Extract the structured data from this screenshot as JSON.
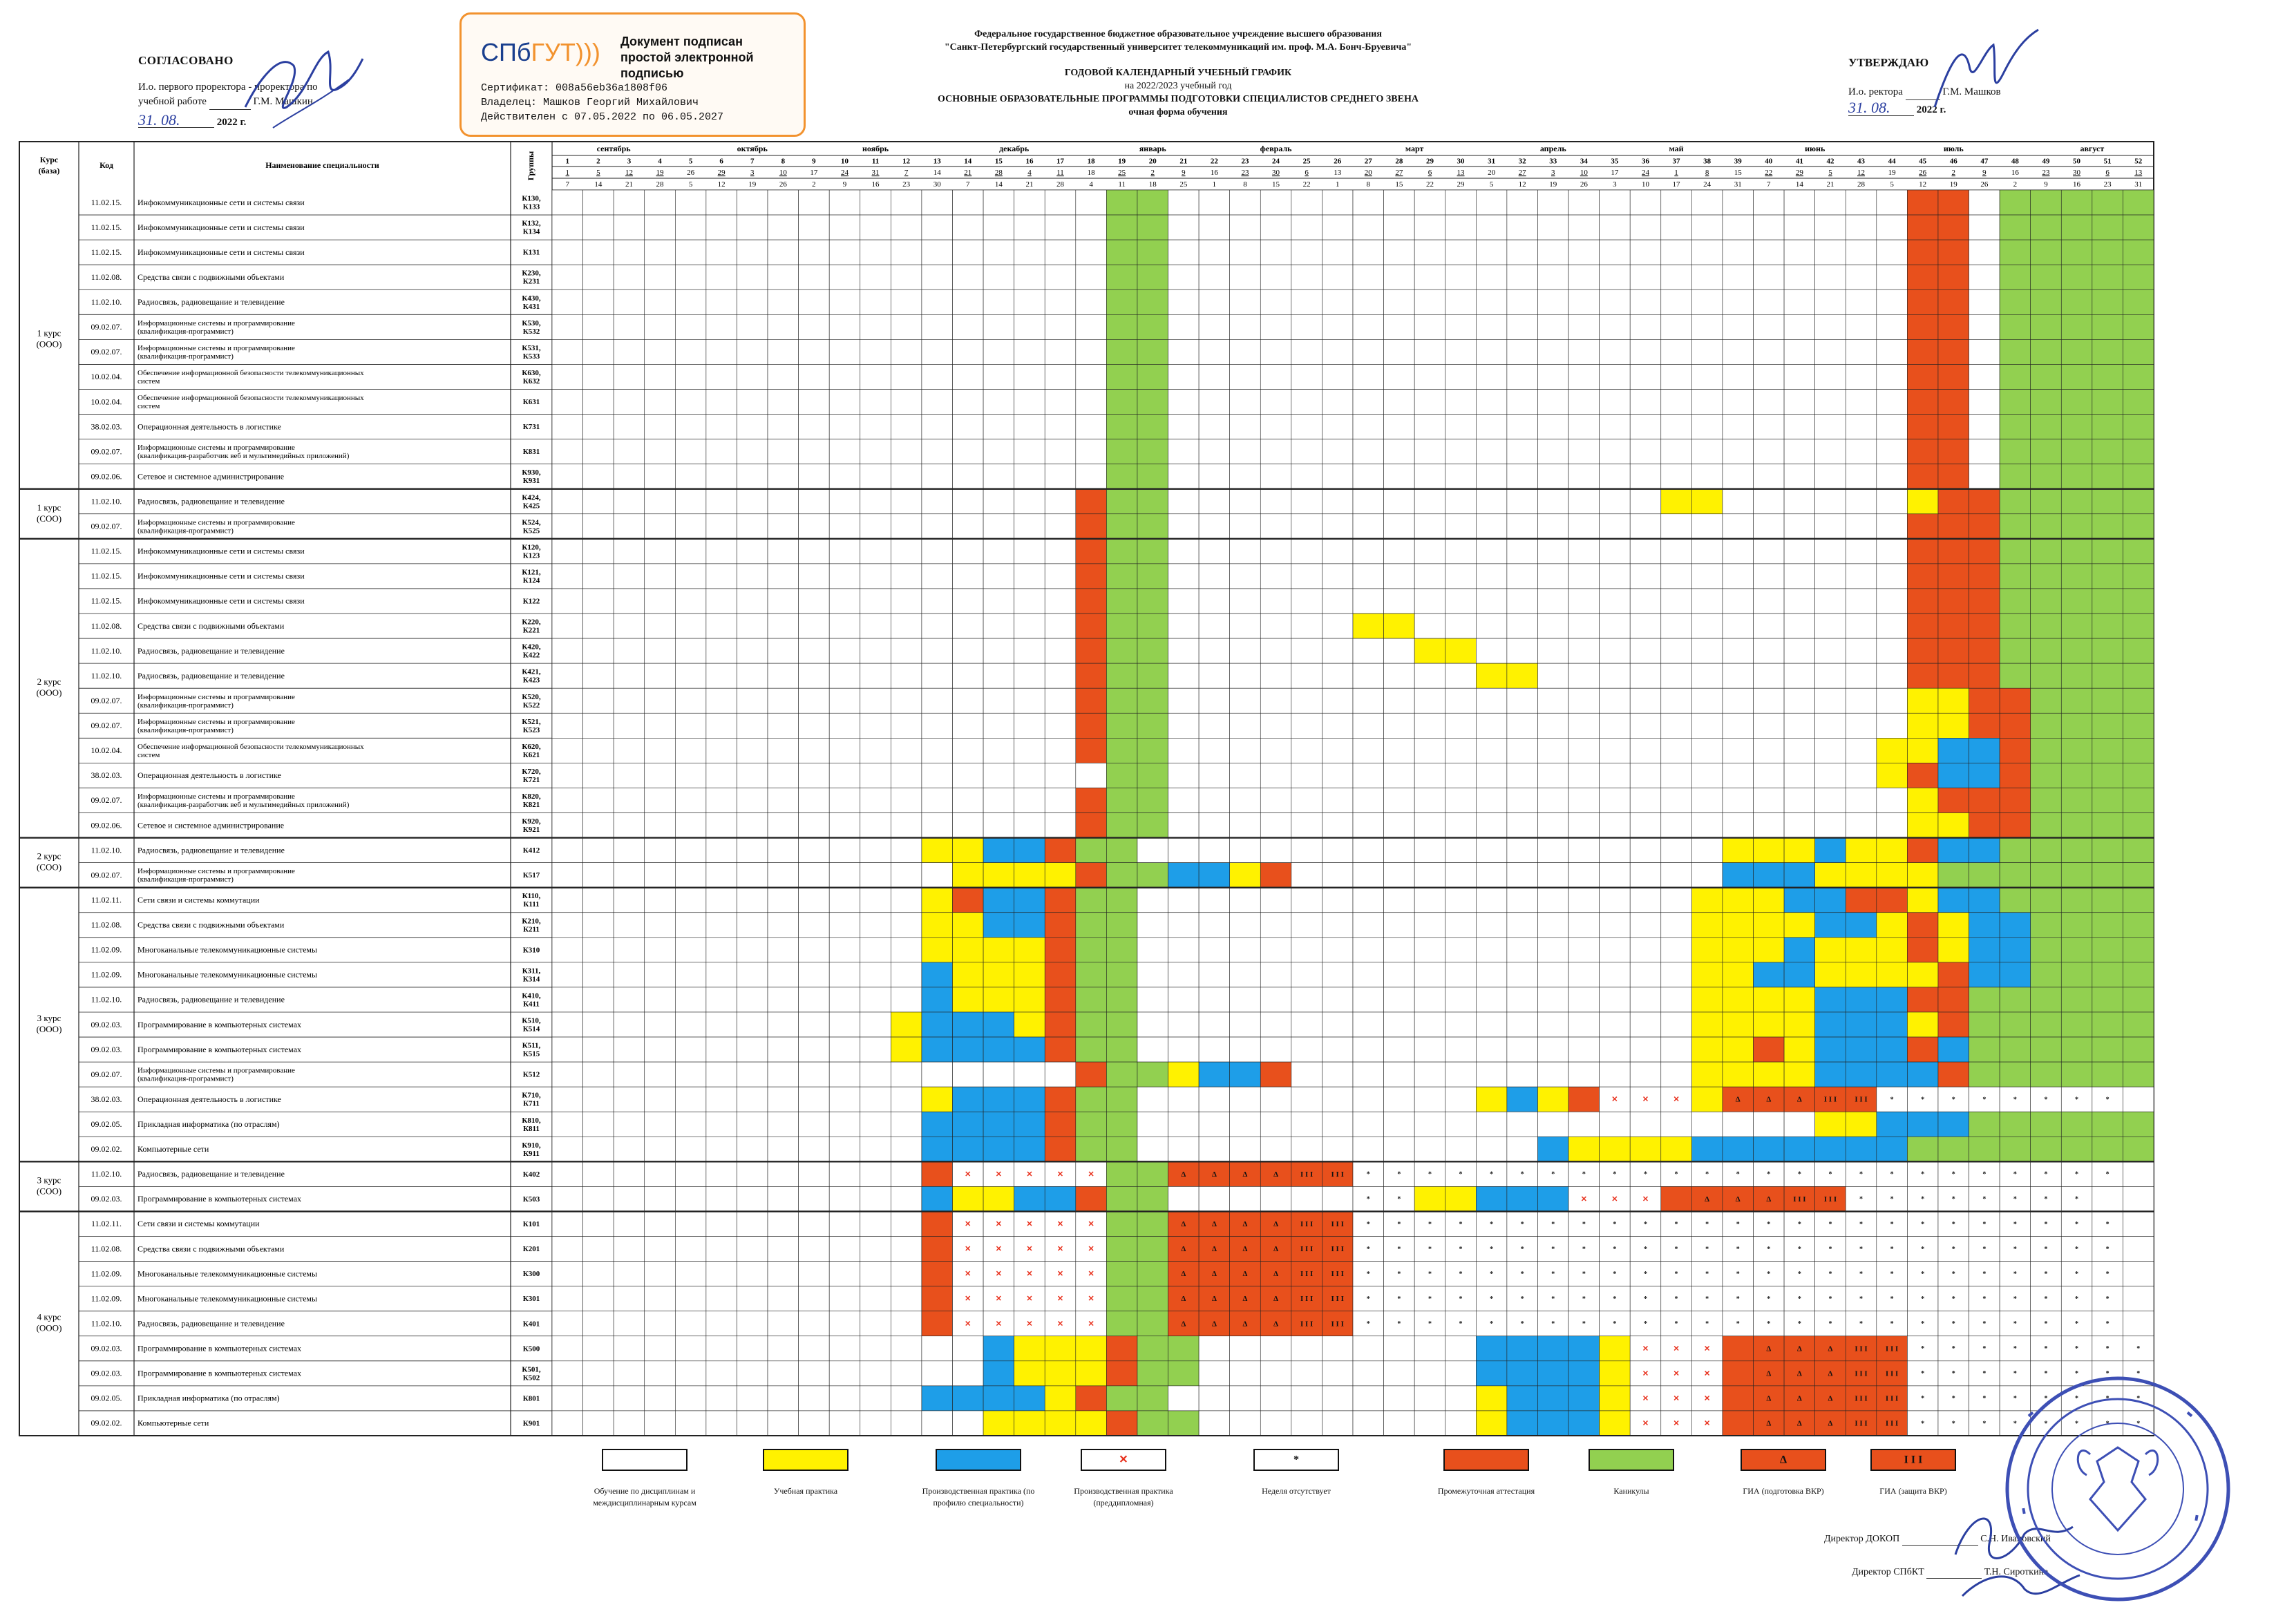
{
  "approve_left": {
    "title": "СОГЛАСОВАНО",
    "line1": "И.о. первого проректора - проректора по",
    "line2": "учебной работе",
    "name": "Г.М. Машкин",
    "date": "31. 08.",
    "year": "2022 г."
  },
  "stamp": {
    "logo_a": "СПб",
    "logo_b": "ГУТ)))",
    "title": "Документ подписан простой электронной подписью",
    "cert": "Сертификат:  008a56eb36a1808f06",
    "owner": "Владелец:  Машков Георгий Михайлович",
    "valid": "Действителен с   07.05.2022  по  06.05.2027"
  },
  "header": {
    "org1": "Федеральное государственное бюджетное образовательное учреждение высшего образования",
    "org2": "\"Санкт-Петербургский государственный университет телекоммуникаций им. проф. М.А. Бонч-Бруевича\"",
    "title": "ГОДОВОЙ КАЛЕНДАРНЫЙ УЧЕБНЫЙ ГРАФИК",
    "year": "на 2022/2023 учебный год",
    "programs": "ОСНОВНЫЕ ОБРАЗОВАТЕЛЬНЫЕ ПРОГРАММЫ ПОДГОТОВКИ СПЕЦИАЛИСТОВ СРЕДНЕГО ЗВЕНА",
    "form": "очная форма обучения"
  },
  "approve_right": {
    "title": "УТВЕРЖДАЮ",
    "line1": "И.о. ректора",
    "name": "Г.М. Машков",
    "date": "31. 08.",
    "year": "2022 г."
  },
  "table_headers": {
    "course": "Курс (база)",
    "code": "Код",
    "name": "Наименование специальности",
    "groups": "Группы"
  },
  "chart_data": {
    "type": "heatmap",
    "months": [
      {
        "name": "сентябрь",
        "start": 1,
        "end": 4
      },
      {
        "name": "октябрь",
        "start": 6,
        "end": 8
      },
      {
        "name": "ноябрь",
        "start": 10,
        "end": 12
      },
      {
        "name": "декабрь",
        "start": 14,
        "end": 17
      },
      {
        "name": "январь",
        "start": 19,
        "end": 21
      },
      {
        "name": "февраль",
        "start": 23,
        "end": 25
      },
      {
        "name": "март",
        "start": 27,
        "end": 30
      },
      {
        "name": "апрель",
        "start": 32,
        "end": 34
      },
      {
        "name": "май",
        "start": 36,
        "end": 38
      },
      {
        "name": "июнь",
        "start": 40,
        "end": 43
      },
      {
        "name": "июль",
        "start": 45,
        "end": 47
      },
      {
        "name": "август",
        "start": 49,
        "end": 52
      }
    ],
    "weeks": [
      "1",
      "2",
      "3",
      "4",
      "5",
      "6",
      "7",
      "8",
      "9",
      "10",
      "11",
      "12",
      "13",
      "14",
      "15",
      "16",
      "17",
      "18",
      "19",
      "20",
      "21",
      "22",
      "23",
      "24",
      "25",
      "26",
      "27",
      "28",
      "29",
      "30",
      "31",
      "32",
      "33",
      "34",
      "35",
      "36",
      "37",
      "38",
      "39",
      "40",
      "41",
      "42",
      "43",
      "44",
      "45",
      "46",
      "47",
      "48",
      "49",
      "50",
      "51",
      "52"
    ],
    "start_dates": [
      "1",
      "5",
      "12",
      "19",
      "26",
      "29",
      "3",
      "10",
      "17",
      "24",
      "31",
      "7",
      "14",
      "21",
      "28",
      "4",
      "11",
      "18",
      "25",
      "2",
      "9",
      "16",
      "23",
      "30",
      "6",
      "13",
      "20",
      "27",
      "6",
      "13",
      "20",
      "27",
      "3",
      "10",
      "17",
      "24",
      "1",
      "8",
      "15",
      "22",
      "29",
      "5",
      "12",
      "19",
      "26",
      "2",
      "9",
      "16",
      "23",
      "30",
      "6",
      "13"
    ],
    "end_dates": [
      "7",
      "14",
      "21",
      "28",
      "5",
      "12",
      "19",
      "26",
      "2",
      "9",
      "16",
      "23",
      "30",
      "7",
      "14",
      "21",
      "28",
      "4",
      "11",
      "18",
      "25",
      "1",
      "8",
      "15",
      "22",
      "1",
      "8",
      "15",
      "22",
      "29",
      "5",
      "12",
      "19",
      "26",
      "3",
      "10",
      "17",
      "24",
      "31",
      "7",
      "14",
      "21",
      "28",
      "5",
      "12",
      "19",
      "26",
      "2",
      "9",
      "16",
      "23",
      "31"
    ],
    "rows": [
      {
        "course": "1 курс (ООО)",
        "code": "11.02.15.",
        "name": "Инфокоммуникационные сети и системы связи",
        "group": "К130, К133",
        "w": "                  GG                        RR GGGGGGGG"
      },
      {
        "course": "",
        "code": "11.02.15.",
        "name": "Инфокоммуникационные сети и системы связи",
        "group": "К132, К134",
        "w": "                  GG                        RR GGGGGGGG"
      },
      {
        "course": "",
        "code": "11.02.15.",
        "name": "Инфокоммуникационные сети и системы связи",
        "group": "К131",
        "w": "                  GG                        RR GGGGGGGG"
      },
      {
        "course": "",
        "code": "11.02.08.",
        "name": "Средства связи с подвижными объектами",
        "group": "К230, К231",
        "w": "                  GG                        RR GGGGGGGG"
      },
      {
        "course": "",
        "code": "11.02.10.",
        "name": "Радиосвязь, радиовещание и телевидение",
        "group": "К430, К431",
        "w": "                  GG                        RR GGGGGGGG"
      },
      {
        "course": "",
        "code": "09.02.07.",
        "name": "Информационные системы и программирование (квалификация-программист)",
        "group": "К530, К532",
        "w": "                  GG                        RR GGGGGGGG"
      },
      {
        "course": "",
        "code": "09.02.07.",
        "name": "Информационные системы и программирование (квалификация-программист)",
        "group": "К531, К533",
        "w": "                  GG                        RR GGGGGGGG"
      },
      {
        "course": "",
        "code": "10.02.04.",
        "name": "Обеспечение информационной безопасности телекоммуникационных систем",
        "group": "К630, К632",
        "w": "                  GG                        RR GGGGGGGG"
      },
      {
        "course": "",
        "code": "10.02.04.",
        "name": "Обеспечение информационной безопасности телекоммуникационных систем",
        "group": "К631",
        "w": "                  GG                        RR GGGGGGGG"
      },
      {
        "course": "",
        "code": "38.02.03.",
        "name": "Операционная деятельность в логистике",
        "group": "К731",
        "w": "                  GG                        RR GGGGGGGG"
      },
      {
        "course": "",
        "code": "09.02.07.",
        "name": "Информационные системы и программирование (квалификация-разработчик веб и мультимедийных приложений)",
        "group": "К831",
        "w": "                  GG                        RR GGGGGGGG"
      },
      {
        "course": "",
        "code": "09.02.06.",
        "name": "Сетевое и системное администрирование",
        "group": "К930, К931",
        "w": "                  GG                        RR GGGGGGGG"
      },
      {
        "course": "1 курс (СОО)",
        "code": "11.02.10.",
        "name": "Радиосвязь, радиовещание и телевидение",
        "group": "К424, К425",
        "w": "                 RGG                YY      YRRGGGGGGGG"
      },
      {
        "course": "",
        "code": "09.02.07.",
        "name": "Информационные системы и программирование (квалификация-программист)",
        "group": "К524, К525",
        "w": "                 RGG                        RRRGGGGGGGG"
      },
      {
        "course": "2 курс (ООО)",
        "code": "11.02.15.",
        "name": "Инфокоммуникационные сети и системы связи",
        "group": "К120, К123",
        "w": "                 RGG                        RRRGGGGGGGG"
      },
      {
        "course": "",
        "code": "11.02.15.",
        "name": "Инфокоммуникационные сети и системы связи",
        "group": "К121, К124",
        "w": "                 RGG                        RRRGGGGGGGG"
      },
      {
        "course": "",
        "code": "11.02.15.",
        "name": "Инфокоммуникационные сети и системы связи",
        "group": "К122",
        "w": "                 RGG                        RRRGGGGGGGG"
      },
      {
        "course": "",
        "code": "11.02.08.",
        "name": "Средства связи с подвижными объектами",
        "group": "К220, К221",
        "w": "                 RGG      YY                RRRGGGGGGGG"
      },
      {
        "course": "",
        "code": "11.02.10.",
        "name": "Радиосвязь, радиовещание и телевидение",
        "group": "К420, К422",
        "w": "                 RGG        YY              RRRGGGGGGGG"
      },
      {
        "course": "",
        "code": "11.02.10.",
        "name": "Радиосвязь, радиовещание и телевидение",
        "group": "К421, К423",
        "w": "                 RGG          YY            RRRGGGGGGGG"
      },
      {
        "course": "",
        "code": "09.02.07.",
        "name": "Информационные системы и программирование (квалификация-программист)",
        "group": "К520, К522",
        "w": "                 RGG                        YYRRGGGGGGGG"
      },
      {
        "course": "",
        "code": "09.02.07.",
        "name": "Информационные системы и программирование (квалификация-программист)",
        "group": "К521, К523",
        "w": "                 RGG                        YYRRGGGGGGGG"
      },
      {
        "course": "",
        "code": "10.02.04.",
        "name": "Обеспечение информационной безопасности телекоммуникационных систем",
        "group": "К620, К621",
        "w": "                 RGG                       YYBBRGGGGGGGG"
      },
      {
        "course": "",
        "code": "38.02.03.",
        "name": "Операционная деятельность в логистике",
        "group": "К720, К721",
        "w": "                  GG                       YRBBRGGGGGGGG"
      },
      {
        "course": "",
        "code": "09.02.07.",
        "name": "Информационные системы и программирование (квалификация-разработчик веб и мультимедийных приложений)",
        "group": "К820, К821",
        "w": "                 RGG                        YRRRGGGGGGGG"
      },
      {
        "course": "",
        "code": "09.02.06.",
        "name": "Сетевое и системное администрирование",
        "group": "К920, К921",
        "w": "                 RGG                        YYRRGGGGGGGG"
      },
      {
        "course": "2 курс (СОО)",
        "code": "11.02.10.",
        "name": "Радиосвязь, радиовещание и телевидение",
        "group": "К412",
        "w": "            YYBBRGG                   YYYBYYRBBGGGGGG"
      },
      {
        "course": "",
        "code": "09.02.07.",
        "name": "Информационные системы и программирование (квалификация-программист)",
        "group": "К517",
        "w": "             YYYYRGGBBYR              BBBYYYYGGGGGGGG"
      },
      {
        "course": "3 курс (ООО)",
        "code": "11.02.11.",
        "name": "Сети связи и системы коммутации",
        "group": "К110, К111",
        "w": "            YRBBRGG                  YYYBBRRYBBGGGGGG"
      },
      {
        "course": "",
        "code": "11.02.08.",
        "name": "Средства связи с подвижными объектами",
        "group": "К210, К211",
        "w": "            YYBBRGG                  YYYYBBYRYBBGGGGG"
      },
      {
        "course": "",
        "code": "11.02.09.",
        "name": "Многоканальные телекоммуникационные системы",
        "group": "К310",
        "w": "            YYYYRGG                  YYYBYYYRYBBGGGGG"
      },
      {
        "course": "",
        "code": "11.02.09.",
        "name": "Многоканальные телекоммуникационные системы",
        "group": "К311, К314",
        "w": "            BYYYRGG                  YYBBYYYYRBBGGGGG"
      },
      {
        "course": "",
        "code": "11.02.10.",
        "name": "Радиосвязь, радиовещание и телевидение",
        "group": "К410, К411",
        "w": "            BYYYRGG                  YYYYBBBRRGGGGGGG"
      },
      {
        "course": "",
        "code": "09.02.03.",
        "name": "Программирование в компьютерных системах",
        "group": "К510, К514",
        "w": "           YBBBYRGG                  YYYYBBBYRGGGGGGG"
      },
      {
        "course": "",
        "code": "09.02.03.",
        "name": "Программирование в компьютерных системах",
        "group": "К511, К515",
        "w": "           YBBBBRGG                  YYRYBBBRBGGGGGGG"
      },
      {
        "course": "",
        "code": "09.02.07.",
        "name": "Информационные системы и программирование (квалификация-программист)",
        "group": "К512",
        "w": "                 RGGYBBR             YYYYBBBBRGGGGGGG"
      },
      {
        "course": "",
        "code": "38.02.03.",
        "name": "Операционная деятельность в логистике",
        "group": "К710, К711",
        "w": "            YBBBRGG           YBYRXXXYDDDTTSSSSSSSS"
      },
      {
        "course": "",
        "code": "09.02.05.",
        "name": "Прикладная информатика (по отраслям)",
        "group": "К810, К811",
        "w": "            BBBBRGG                      YYBBBGGGGGGG"
      },
      {
        "course": "",
        "code": "09.02.02.",
        "name": "Компьютерные сети",
        "group": "К910, К911",
        "w": "            BBBBRGG             BYYYYBBBBBBBGGGGGGGG"
      },
      {
        "course": "3 курс (СОО)",
        "code": "11.02.10.",
        "name": "Радиосвязь, радиовещание и телевидение",
        "group": "К402",
        "w": "            RXXXXXGGDDDDTTSSSSSSSSSSSSSSSSSSSSSSSSS"
      },
      {
        "course": "",
        "code": "09.02.03.",
        "name": "Программирование в компьютерных системах",
        "group": "К503",
        "w": "            BYYBBRGG      SSYYBBBXXXRDDDTTSSSSSSSS"
      },
      {
        "course": "4 курс (ООО)",
        "code": "11.02.11.",
        "name": "Сети связи и системы коммутации",
        "group": "К101",
        "w": "            RXXXXXGGDDDDTTSSSSSSSSSSSSSSSSSSSSSSSSS"
      },
      {
        "course": "",
        "code": "11.02.08.",
        "name": "Средства связи с подвижными объектами",
        "group": "К201",
        "w": "            RXXXXXGGDDDDTTSSSSSSSSSSSSSSSSSSSSSSSSS"
      },
      {
        "course": "",
        "code": "11.02.09.",
        "name": "Многоканальные телекоммуникационные системы",
        "group": "К300",
        "w": "            RXXXXXGGDDDDTTSSSSSSSSSSSSSSSSSSSSSSSSS"
      },
      {
        "course": "",
        "code": "11.02.09.",
        "name": "Многоканальные телекоммуникационные системы",
        "group": "К301",
        "w": "            RXXXXXGGDDDDTTSSSSSSSSSSSSSSSSSSSSSSSSS"
      },
      {
        "course": "",
        "code": "11.02.10.",
        "name": "Радиосвязь, радиовещание и телевидение",
        "group": "К401",
        "w": "            RXXXXXGGDDDDTTSSSSSSSSSSSSSSSSSSSSSSSSS"
      },
      {
        "course": "",
        "code": "09.02.03.",
        "name": "Программирование в компьютерных системах",
        "group": "К500",
        "w": "              BYYYRGG         BBBBYXXXRDDDTTSSSSSSSS"
      },
      {
        "course": "",
        "code": "09.02.03.",
        "name": "Программирование в компьютерных системах",
        "group": "К501, К502",
        "w": "              BYYYRGG         BBBBYXXXRDDDTTSSSSSSSS"
      },
      {
        "course": "",
        "code": "09.02.05.",
        "name": "Прикладная информатика (по отраслям)",
        "group": "К801",
        "w": "            BBBBYRGG          YBBBYXXXRDDDTTSSSSSSSS"
      },
      {
        "course": "",
        "code": "09.02.02.",
        "name": "Компьютерные сети",
        "group": "К901",
        "w": "              YYYYRGG         YBBBYXXXRDDDTTSSSSSSSS"
      }
    ],
    "legend": [
      {
        "key": " ",
        "label": "Обучение по дисциплинам и междисциплинарным курсам"
      },
      {
        "key": "Y",
        "label": "Учебная практика"
      },
      {
        "key": "B",
        "label": "Производственная практика (по профилю специальности)"
      },
      {
        "key": "X",
        "label": "Производственная практика (преддипломная)"
      },
      {
        "key": "S",
        "label": "Неделя отсутствует"
      },
      {
        "key": "R",
        "label": "Промежуточная аттестация"
      },
      {
        "key": "G",
        "label": "Каникулы"
      },
      {
        "key": "D",
        "label": "ГИА (подготовка ВКР)"
      },
      {
        "key": "T",
        "label": "ГИА (защита ВКР)"
      }
    ],
    "symbols": {
      "X": "✕",
      "S": "*",
      "D": "Δ",
      "T": "I I I"
    },
    "colors": {
      "Y": "#fff200",
      "B": "#1e9ee8",
      "R": "#e8501c",
      "G": "#92d050",
      "X": "#ffffff",
      "S": "#ffffff",
      "D": "#e8501c",
      "T": "#e8501c",
      " ": "#ffffff",
      "line": "#222222",
      "x_mark": "#e8301c"
    }
  },
  "directors": {
    "d1_label": "Директор ДОКОП",
    "d1_name": "С.Н. Ивановский",
    "d2_label": "Директор СПбКТ",
    "d2_name": "Т.Н. Сироткина"
  }
}
